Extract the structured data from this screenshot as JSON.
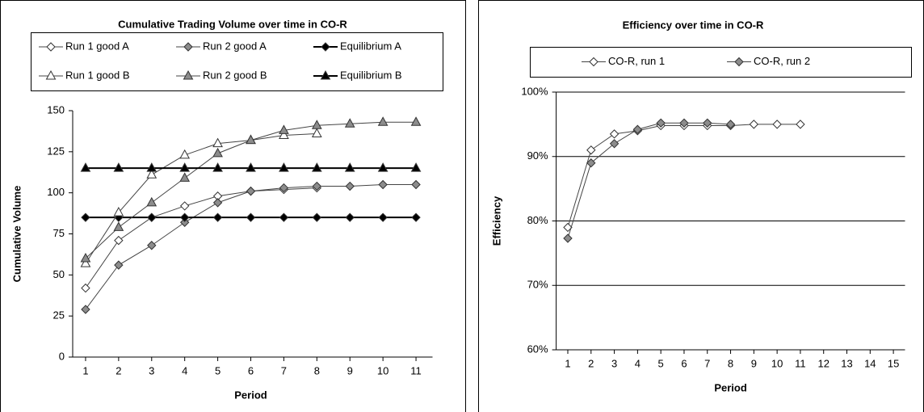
{
  "chart_data": [
    {
      "type": "line",
      "title": "Cumulative Trading Volume over time in CO-R",
      "x_label": "Period",
      "y_label": "Cumulative Volume",
      "x": [
        1,
        2,
        3,
        4,
        5,
        6,
        7,
        8,
        9,
        10,
        11
      ],
      "xlim": [
        0.5,
        11.5
      ],
      "xticks": [
        1,
        2,
        3,
        4,
        5,
        6,
        7,
        8,
        9,
        10,
        11
      ],
      "ylim": [
        0,
        150
      ],
      "yticks": [
        0,
        25,
        50,
        75,
        100,
        125,
        150
      ],
      "grid": false,
      "series": [
        {
          "name": "Run 1 good A",
          "marker": "diamond",
          "color": "#ffffff",
          "values": [
            42,
            71,
            85,
            92,
            98,
            101,
            102,
            103,
            null,
            null,
            null
          ]
        },
        {
          "name": "Run 2 good A",
          "marker": "diamond",
          "color": "#8c8c8c",
          "values": [
            29,
            56,
            68,
            82,
            94,
            101,
            103,
            104,
            104,
            105,
            105
          ]
        },
        {
          "name": "Equilibrium A",
          "marker": "diamond",
          "color": "#000000",
          "values": [
            85,
            85,
            85,
            85,
            85,
            85,
            85,
            85,
            85,
            85,
            85
          ]
        },
        {
          "name": "Run 1 good B",
          "marker": "triangle",
          "color": "#ffffff",
          "values": [
            57,
            88,
            111,
            123,
            130,
            132,
            135,
            136,
            null,
            null,
            null
          ]
        },
        {
          "name": "Run 2 good B",
          "marker": "triangle",
          "color": "#8c8c8c",
          "values": [
            60,
            79,
            94,
            109,
            124,
            132,
            138,
            141,
            142,
            143,
            143
          ]
        },
        {
          "name": "Equilibrium B",
          "marker": "triangle",
          "color": "#000000",
          "values": [
            115,
            115,
            115,
            115,
            115,
            115,
            115,
            115,
            115,
            115,
            115
          ]
        }
      ]
    },
    {
      "type": "line",
      "title": "Efficiency over time in CO-R",
      "x_label": "Period",
      "y_label": "Efficiency",
      "x": [
        1,
        2,
        3,
        4,
        5,
        6,
        7,
        8,
        9,
        10,
        11
      ],
      "xlim": [
        0.5,
        15.5
      ],
      "xticks": [
        1,
        2,
        3,
        4,
        5,
        6,
        7,
        8,
        9,
        10,
        11,
        12,
        13,
        14,
        15
      ],
      "ylim": [
        60,
        100
      ],
      "yticks": [
        {
          "value": 60,
          "label": "60%"
        },
        {
          "value": 70,
          "label": "70%"
        },
        {
          "value": 80,
          "label": "80%"
        },
        {
          "value": 90,
          "label": "90%"
        },
        {
          "value": 100,
          "label": "100%"
        }
      ],
      "grid": true,
      "series": [
        {
          "name": "CO-R, run 1",
          "marker": "diamond",
          "color": "#ffffff",
          "values": [
            79,
            91,
            93.5,
            94,
            94.8,
            94.8,
            94.8,
            94.8,
            95,
            95,
            95
          ]
        },
        {
          "name": "CO-R, run 2",
          "marker": "diamond",
          "color": "#8c8c8c",
          "values": [
            77.3,
            89,
            92,
            94.2,
            95.2,
            95.2,
            95.2,
            95,
            null,
            null,
            null
          ]
        }
      ]
    }
  ]
}
